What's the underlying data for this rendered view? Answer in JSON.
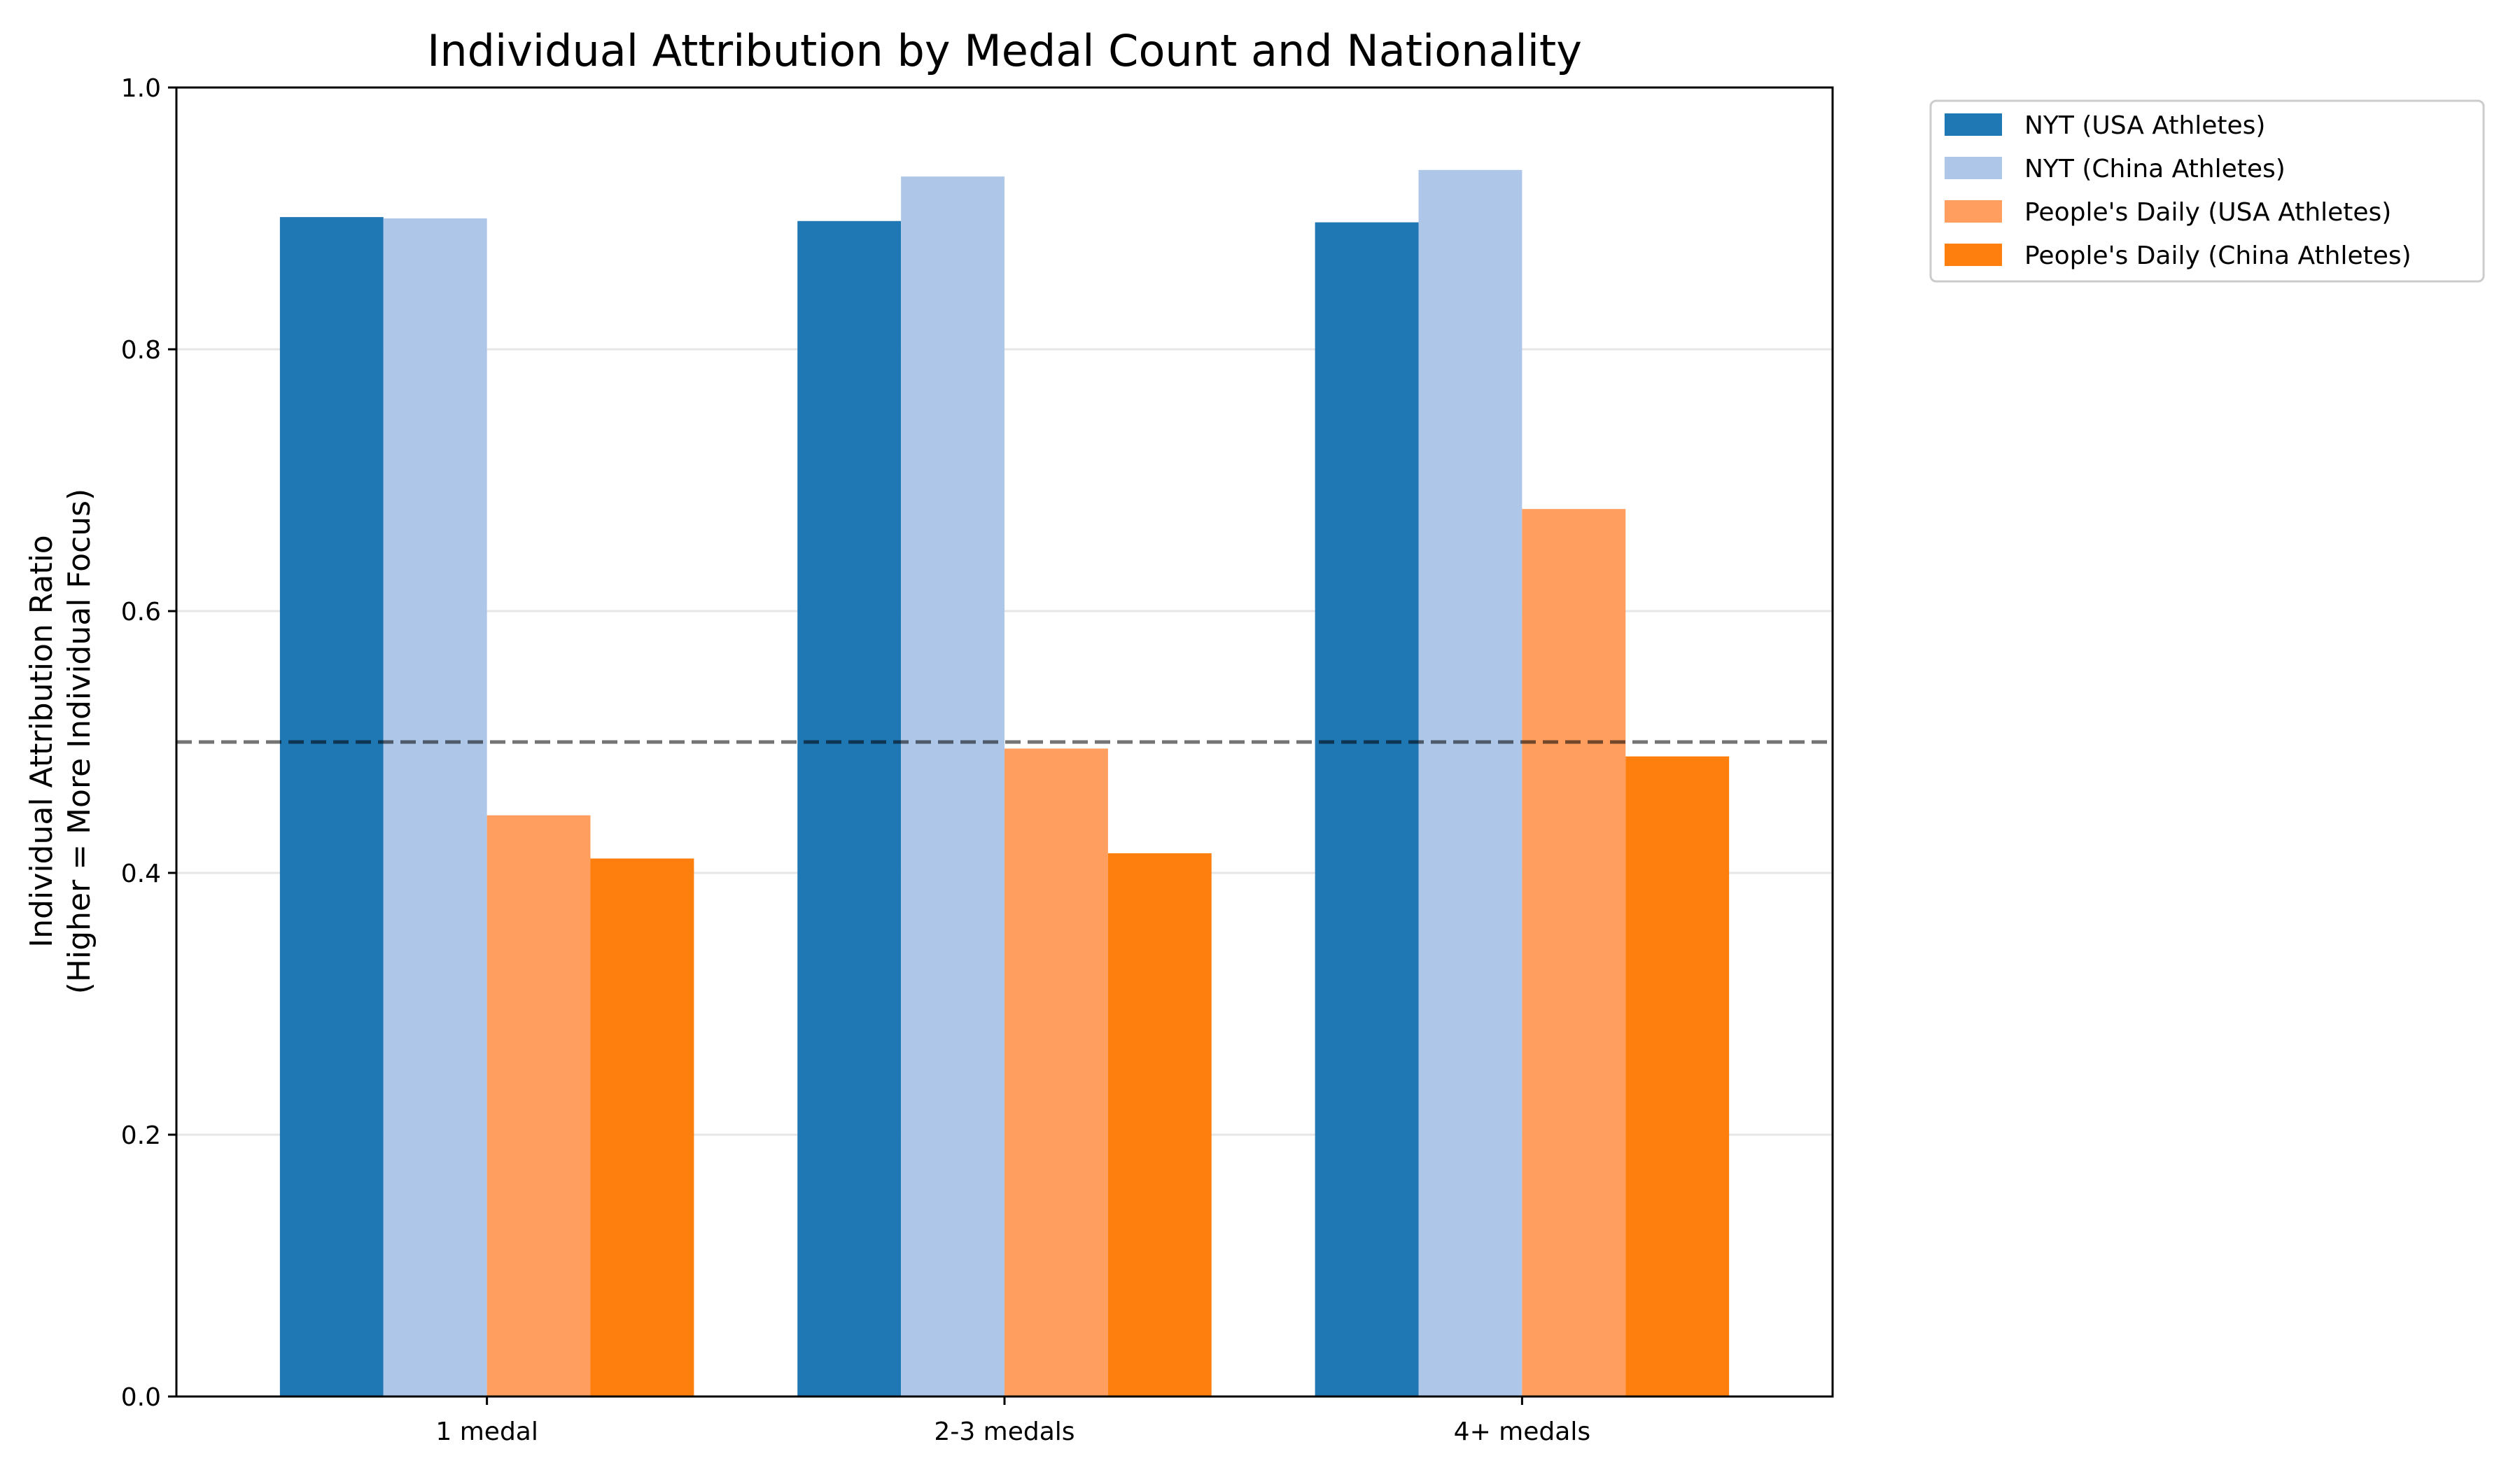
{
  "chart_data": {
    "type": "bar",
    "title": "Individual Attribution by Medal Count and Nationality",
    "xlabel": "",
    "ylabel": [
      "Individual Attribution Ratio",
      "(Higher = More Individual Focus)"
    ],
    "ylim": [
      0,
      1.0
    ],
    "yticks": [
      0.0,
      0.2,
      0.4,
      0.6,
      0.8,
      1.0
    ],
    "ytick_labels": [
      "0.0",
      "0.2",
      "0.4",
      "0.6",
      "0.8",
      "1.0"
    ],
    "categories": [
      "1 medal",
      "2-3 medals",
      "4+ medals"
    ],
    "series": [
      {
        "name": "NYT (USA Athletes)",
        "color": "#1f77b4",
        "values": [
          0.901,
          0.898,
          0.897
        ]
      },
      {
        "name": "NYT (China Athletes)",
        "color": "#aec7e8",
        "values": [
          0.9,
          0.932,
          0.937
        ]
      },
      {
        "name": "People's Daily (USA Athletes)",
        "color": "#ff9e5e",
        "values": [
          0.444,
          0.495,
          0.678
        ]
      },
      {
        "name": "People's Daily (China Athletes)",
        "color": "#ff7f0e",
        "values": [
          0.411,
          0.415,
          0.489
        ]
      }
    ],
    "reference_line": {
      "y": 0.5,
      "style": "dashed",
      "color": "#000000"
    },
    "grid": {
      "y": true,
      "x": false
    },
    "legend_position": "outside-top-right"
  }
}
